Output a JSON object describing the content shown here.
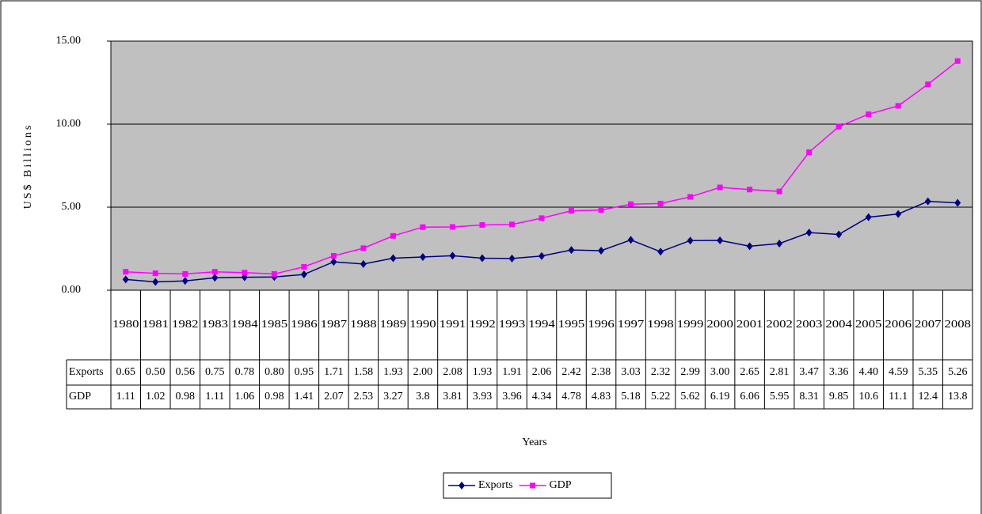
{
  "chart_data": {
    "type": "line",
    "xlabel": "Years",
    "ylabel": "US$ Billions",
    "categories": [
      "1980",
      "1981",
      "1982",
      "1983",
      "1984",
      "1985",
      "1986",
      "1987",
      "1988",
      "1989",
      "1990",
      "1991",
      "1992",
      "1993",
      "1994",
      "1995",
      "1996",
      "1997",
      "1998",
      "1999",
      "2000",
      "2001",
      "2002",
      "2003",
      "2004",
      "2005",
      "2006",
      "2007",
      "2008"
    ],
    "series": [
      {
        "name": "Exports",
        "color": "#000080",
        "marker": "diamond",
        "values": [
          0.65,
          0.5,
          0.56,
          0.75,
          0.78,
          0.8,
          0.95,
          1.71,
          1.58,
          1.93,
          2,
          2.08,
          1.93,
          1.91,
          2.06,
          2.42,
          2.38,
          3.03,
          2.32,
          2.99,
          3,
          2.65,
          2.81,
          3.47,
          3.36,
          4.4,
          4.59,
          5.35,
          5.26
        ],
        "value_labels": [
          "0.65",
          "0.50",
          "0.56",
          "0.75",
          "0.78",
          "0.80",
          "0.95",
          "1.71",
          "1.58",
          "1.93",
          "2.00",
          "2.08",
          "1.93",
          "1.91",
          "2.06",
          "2.42",
          "2.38",
          "3.03",
          "2.32",
          "2.99",
          "3.00",
          "2.65",
          "2.81",
          "3.47",
          "3.36",
          "4.40",
          "4.59",
          "5.35",
          "5.26"
        ]
      },
      {
        "name": "GDP",
        "color": "#ff00ff",
        "marker": "square",
        "values": [
          1.11,
          1.02,
          0.98,
          1.11,
          1.06,
          0.98,
          1.41,
          2.07,
          2.53,
          3.27,
          3.8,
          3.81,
          3.93,
          3.96,
          4.34,
          4.78,
          4.83,
          5.18,
          5.22,
          5.62,
          6.19,
          6.06,
          5.95,
          8.31,
          9.85,
          10.6,
          11.1,
          12.4,
          13.8
        ],
        "value_labels": [
          "1.11",
          "1.02",
          "0.98",
          "1.11",
          "1.06",
          "0.98",
          "1.41",
          "2.07",
          "2.53",
          "3.27",
          "3.8",
          "3.81",
          "3.93",
          "3.96",
          "4.34",
          "4.78",
          "4.83",
          "5.18",
          "5.22",
          "5.62",
          "6.19",
          "6.06",
          "5.95",
          "8.31",
          "9.85",
          "10.6",
          "11.1",
          "12.4",
          "13.8"
        ]
      }
    ],
    "ylim": [
      0,
      15
    ],
    "yticks": [
      {
        "value": 0,
        "label": "0.00"
      },
      {
        "value": 5,
        "label": "5.00"
      },
      {
        "value": 10,
        "label": "10.00"
      },
      {
        "value": 15,
        "label": "15.00"
      }
    ],
    "grid": true,
    "plot_background": "#c0c0c0",
    "legend": "bottom"
  }
}
